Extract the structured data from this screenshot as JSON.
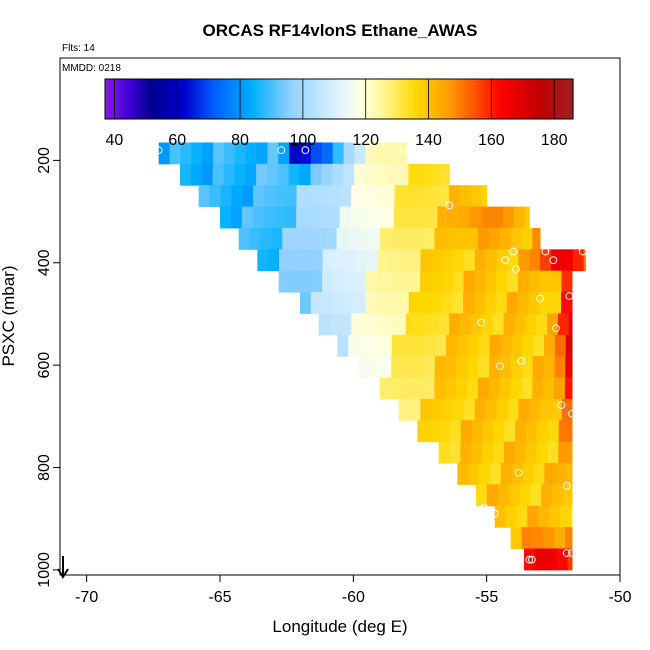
{
  "chart_data": {
    "type": "heatmap",
    "title": "ORCAS RF14vlonS Ethane_AWAS",
    "flights_label": "Flts: 14",
    "date_label": "MMDD: 0218",
    "xlabel": "Longitude (deg E)",
    "ylabel": "PSXC (mbar)",
    "xlim": [
      -71,
      -50
    ],
    "ylim": [
      1010,
      0
    ],
    "x_ticks": [
      -70,
      -65,
      -60,
      -55,
      -50
    ],
    "x_tick_labels": [
      "-70",
      "-65",
      "-60",
      "-55",
      "-50"
    ],
    "y_ticks": [
      200,
      400,
      600,
      800,
      1000
    ],
    "y_tick_labels": [
      "200",
      "400",
      "600",
      "800",
      "1000"
    ],
    "colorbar": {
      "range": [
        37,
        186
      ],
      "ticks": [
        40,
        60,
        80,
        100,
        120,
        140,
        160,
        180
      ],
      "tick_labels": [
        "40",
        "60",
        "80",
        "100",
        "120",
        "140",
        "160",
        "180"
      ],
      "stops": [
        {
          "v": 37,
          "color": "#8a19e8"
        },
        {
          "v": 45,
          "color": "#3c00d4"
        },
        {
          "v": 52,
          "color": "#00008f"
        },
        {
          "v": 62,
          "color": "#0000cc"
        },
        {
          "v": 72,
          "color": "#0060ff"
        },
        {
          "v": 84,
          "color": "#00b0ff"
        },
        {
          "v": 96,
          "color": "#90d0ff"
        },
        {
          "v": 110,
          "color": "#d8f0ff"
        },
        {
          "v": 118,
          "color": "#ffffe8"
        },
        {
          "v": 126,
          "color": "#fff590"
        },
        {
          "v": 136,
          "color": "#ffd800"
        },
        {
          "v": 146,
          "color": "#ffa000"
        },
        {
          "v": 155,
          "color": "#ff5000"
        },
        {
          "v": 163,
          "color": "#ff0000"
        },
        {
          "v": 175,
          "color": "#c00000"
        },
        {
          "v": 186,
          "color": "#a02020"
        }
      ]
    },
    "grid": {
      "lon_start": -67.3,
      "lon_end": -51.8,
      "nx": 38,
      "p_top": 165,
      "p_bottom": 1000,
      "ny": 20,
      "left_edge": [
        -67.3,
        -66.5,
        -65.8,
        -65.0,
        -64.3,
        -63.6,
        -62.8,
        -62.0,
        -61.3,
        -60.6,
        -59.8,
        -59.0,
        -58.3,
        -57.6,
        -56.8,
        -56.1,
        -55.4,
        -54.7,
        -54.1,
        -53.6
      ],
      "right_edge": [
        -58.0,
        -56.4,
        -55.0,
        -53.4,
        -53.0,
        -51.3,
        -51.8,
        -51.8,
        -51.8,
        -51.8,
        -51.8,
        -51.8,
        -51.8,
        -51.8,
        -51.8,
        -51.8,
        -51.8,
        -51.8,
        -51.8,
        -51.8
      ]
    },
    "value_model": {
      "cold_lon": -64.5,
      "warm_lon": -55.5,
      "cold_value": 86,
      "warm_value": 139,
      "hotspots": [
        {
          "lon": -61.9,
          "p": 185,
          "value": 42,
          "radius_lon": 0.55,
          "radius_p": 30
        },
        {
          "lon": -61.3,
          "p": 185,
          "value": 70,
          "radius_lon": 0.9,
          "radius_p": 35
        },
        {
          "lon": -52.2,
          "p": 380,
          "value": 172,
          "radius_lon": 0.9,
          "radius_p": 35
        },
        {
          "lon": -51.9,
          "p": 560,
          "value": 170,
          "radius_lon": 0.35,
          "radius_p": 160
        },
        {
          "lon": -52.8,
          "p": 975,
          "value": 168,
          "radius_lon": 1.3,
          "radius_p": 35
        },
        {
          "lon": -54.9,
          "p": 320,
          "value": 150,
          "radius_lon": 1.2,
          "radius_p": 35
        }
      ]
    },
    "sample_points": [
      {
        "lon": -67.3,
        "p": 180
      },
      {
        "lon": -62.7,
        "p": 180
      },
      {
        "lon": -61.8,
        "p": 180
      },
      {
        "lon": -58.3,
        "p": 180
      },
      {
        "lon": -57.9,
        "p": 180
      },
      {
        "lon": -56.4,
        "p": 288
      },
      {
        "lon": -54.0,
        "p": 378
      },
      {
        "lon": -54.3,
        "p": 395
      },
      {
        "lon": -53.9,
        "p": 412
      },
      {
        "lon": -52.8,
        "p": 378
      },
      {
        "lon": -52.5,
        "p": 395
      },
      {
        "lon": -51.4,
        "p": 378
      },
      {
        "lon": -51.9,
        "p": 465
      },
      {
        "lon": -53.0,
        "p": 470
      },
      {
        "lon": -52.4,
        "p": 528
      },
      {
        "lon": -55.2,
        "p": 517
      },
      {
        "lon": -53.7,
        "p": 592
      },
      {
        "lon": -54.5,
        "p": 602
      },
      {
        "lon": -52.2,
        "p": 678
      },
      {
        "lon": -51.8,
        "p": 695
      },
      {
        "lon": -53.8,
        "p": 810
      },
      {
        "lon": -52.0,
        "p": 836
      },
      {
        "lon": -55.1,
        "p": 878
      },
      {
        "lon": -54.7,
        "p": 890
      },
      {
        "lon": -55.2,
        "p": 948
      },
      {
        "lon": -53.4,
        "p": 980
      },
      {
        "lon": -53.3,
        "p": 980
      },
      {
        "lon": -52.0,
        "p": 967
      },
      {
        "lon": -51.8,
        "p": 967
      }
    ]
  }
}
